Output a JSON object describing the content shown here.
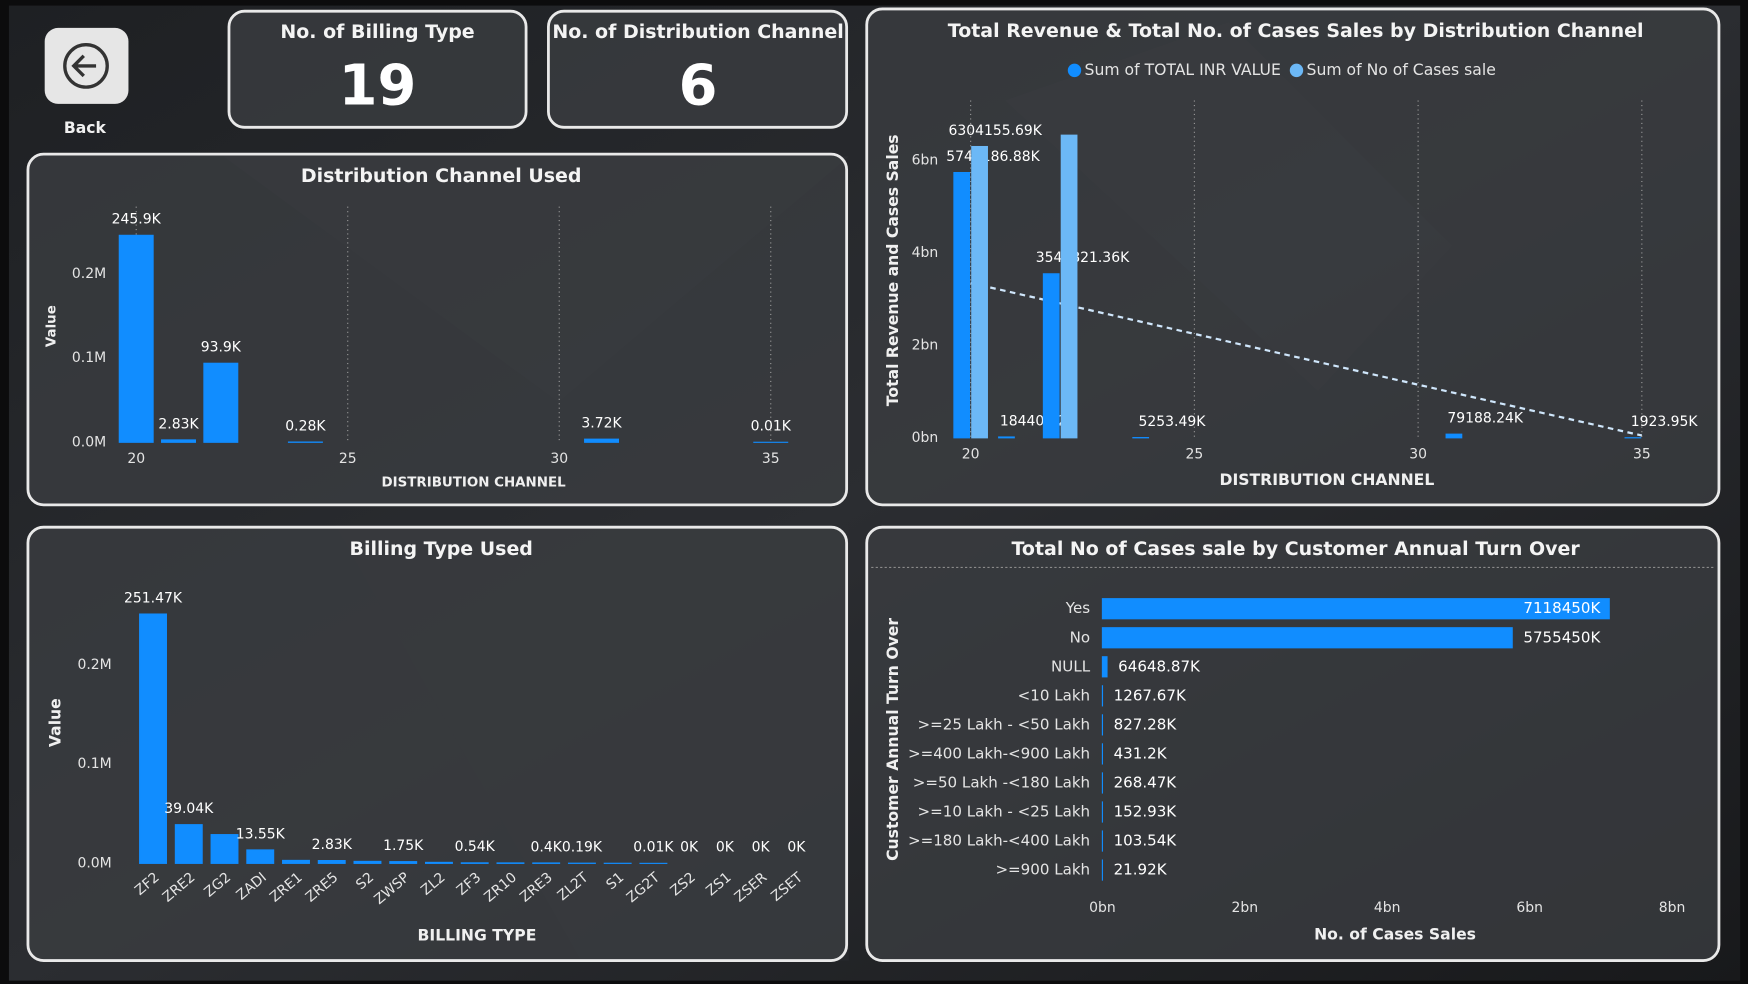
{
  "back_button": {
    "label": "Back"
  },
  "cards": [
    {
      "title": "No. of Billing Type",
      "value": 19
    },
    {
      "title": "No. of Distribution Channel",
      "value": 6
    }
  ],
  "chart_data": [
    {
      "type": "bar",
      "title": "Distribution Channel Used",
      "x": [
        20,
        21,
        22,
        24,
        31,
        35
      ],
      "values": [
        245900,
        2830,
        93900,
        280,
        3720,
        10
      ],
      "value_labels": [
        "245.9K",
        "2.83K",
        "93.9K",
        "0.28K",
        "3.72K",
        "0.01K"
      ],
      "color": "#118dff",
      "xlim": [
        19.5,
        35.5
      ],
      "xticks": [
        20,
        25,
        30,
        35
      ],
      "ylim": [
        0,
        280000
      ],
      "yticks": [
        {
          "value": 0,
          "label": "0.0M"
        },
        {
          "value": 100000,
          "label": "0.1M"
        },
        {
          "value": 200000,
          "label": "0.2M"
        }
      ],
      "x_label": "DISTRIBUTION CHANNEL",
      "y_label": "Value",
      "grid": "x"
    },
    {
      "type": "bar",
      "title": "Total Revenue & Total No. of Cases Sales by Distribution Channel",
      "x": [
        20,
        21,
        22,
        24,
        31,
        35
      ],
      "series": [
        {
          "name": "Sum of TOTAL INR VALUE",
          "color": "#118dff",
          "values": [
            5741186880,
            18440920,
            3549821360,
            5253490,
            79188240,
            1923950
          ],
          "value_labels": [
            "5741186.88K",
            "18440.92K",
            "3549821.36K",
            "5253.49K",
            "79188.24K",
            "1923.95K"
          ]
        },
        {
          "name": "Sum of No of Cases sale",
          "color": "#6cb8f6",
          "values": [
            6304155690,
            null,
            6550000000,
            null,
            null,
            null
          ],
          "value_labels": [
            "6304155.69K",
            null,
            null,
            null,
            null,
            null
          ]
        }
      ],
      "trend_line": {
        "x": [
          20,
          35
        ],
        "values": [
          3350000000,
          50000000
        ]
      },
      "xlim": [
        19.4,
        35.6
      ],
      "xticks": [
        20,
        25,
        30,
        35
      ],
      "ylim": [
        0,
        7300000000
      ],
      "yticks": [
        {
          "value": 0,
          "label": "0bn"
        },
        {
          "value": 2000000000,
          "label": "2bn"
        },
        {
          "value": 4000000000,
          "label": "4bn"
        },
        {
          "value": 6000000000,
          "label": "6bn"
        }
      ],
      "x_label": "DISTRIBUTION CHANNEL",
      "y_label": "Total Revenue and Cases Sales",
      "legend": "top",
      "grid": "x"
    },
    {
      "type": "bar",
      "title": "Billing Type Used",
      "categories": [
        "ZF2",
        "ZRE2",
        "ZG2",
        "ZADI",
        "ZRE1",
        "ZRE5",
        "S2",
        "ZWSP",
        "ZL2",
        "ZF3",
        "ZR10",
        "ZRE3",
        "ZL2T",
        "S1",
        "ZG2T",
        "ZS2",
        "ZS1",
        "ZSER",
        "ZSET"
      ],
      "values": [
        251470,
        39040,
        29000,
        13550,
        3000,
        2830,
        2000,
        1750,
        1000,
        540,
        450,
        400,
        190,
        100,
        10,
        0,
        0,
        0,
        0
      ],
      "value_labels": [
        "251.47K",
        "39.04K",
        null,
        "13.55K",
        null,
        "2.83K",
        null,
        "1.75K",
        null,
        "0.54K",
        null,
        "0.4K",
        "0.19K",
        null,
        "0.01K",
        "0K",
        "0K",
        "0K",
        "0K"
      ],
      "color": "#118dff",
      "ylim": [
        0,
        285000
      ],
      "yticks": [
        {
          "value": 0,
          "label": "0.0M"
        },
        {
          "value": 100000,
          "label": "0.1M"
        },
        {
          "value": 200000,
          "label": "0.2M"
        }
      ],
      "x_label": "BILLING TYPE",
      "y_label": "Value"
    },
    {
      "type": "hbar",
      "title": "Total No of Cases sale by Customer Annual Turn Over",
      "categories": [
        "Yes",
        "No",
        "NULL",
        "<10 Lakh",
        ">=25 Lakh - <50 Lakh",
        ">=400 Lakh-<900 Lakh",
        ">=50 Lakh -<180 Lakh",
        ">=10 Lakh - <25 Lakh",
        ">=180 Lakh-<400 Lakh",
        ">=900 Lakh"
      ],
      "values": [
        7118450000,
        5755450000,
        64648870,
        1267670,
        827280,
        431200,
        268470,
        152930,
        103540,
        21920
      ],
      "value_labels": [
        "7118450K",
        "5755450K",
        "64648.87K",
        "1267.67K",
        "827.28K",
        "431.2K",
        "268.47K",
        "152.93K",
        "103.54K",
        "21.92K"
      ],
      "color": "#118dff",
      "xlim": [
        0,
        8000000000
      ],
      "xticks": [
        {
          "value": 0,
          "label": "0bn"
        },
        {
          "value": 2000000000,
          "label": "2bn"
        },
        {
          "value": 4000000000,
          "label": "4bn"
        },
        {
          "value": 6000000000,
          "label": "6bn"
        },
        {
          "value": 8000000000,
          "label": "8bn"
        }
      ],
      "x_label": "No. of Cases Sales",
      "y_label": "Customer Annual Turn Over"
    }
  ]
}
